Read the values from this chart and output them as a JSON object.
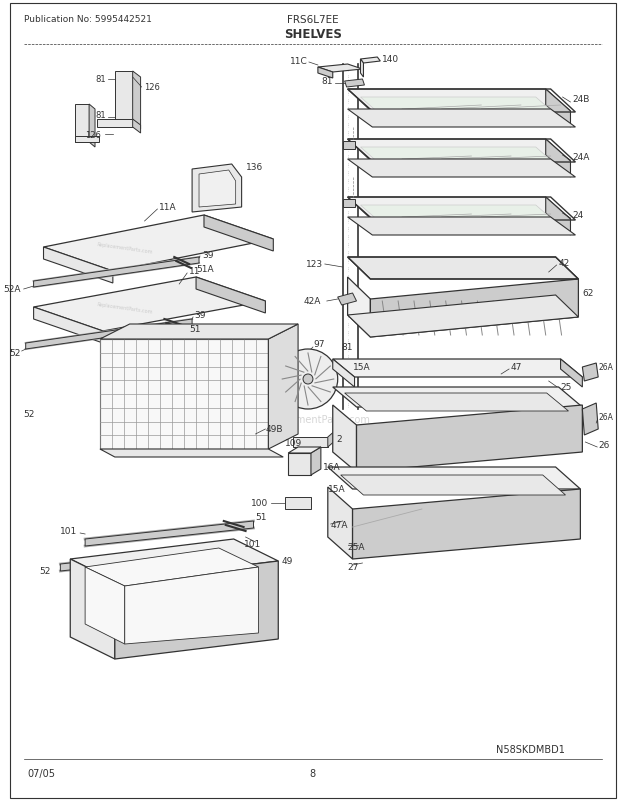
{
  "title": "SHELVES",
  "model": "FRS6L7EE",
  "publication": "Publication No: 5995442521",
  "footer_date": "07/05",
  "footer_page": "8",
  "watermark": "N58SKDMBD1",
  "bg_color": "#ffffff",
  "border_color": "#000000",
  "text_color": "#000000",
  "dc": "#333333",
  "gray1": "#cccccc",
  "gray2": "#e8e8e8",
  "gray3": "#aaaaaa"
}
